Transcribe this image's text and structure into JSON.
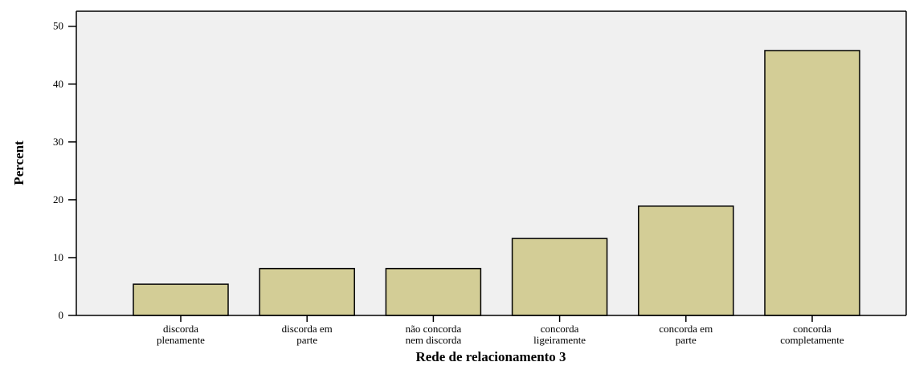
{
  "chart_data": {
    "type": "bar",
    "x_label": "Rede de relacionamento 3",
    "y_label": "Percent",
    "categories": [
      [
        "discorda",
        "plenamente"
      ],
      [
        "discorda em",
        "parte"
      ],
      [
        "não concorda",
        "nem discorda"
      ],
      [
        "concorda",
        "ligeiramente"
      ],
      [
        "concorda em",
        "parte"
      ],
      [
        "concorda",
        "completamente"
      ]
    ],
    "values": [
      5.4,
      8.1,
      8.1,
      13.3,
      18.9,
      45.8
    ],
    "color": "#d3cd96",
    "ylim": [
      0,
      52.6
    ],
    "yticks": [
      0,
      10,
      20,
      30,
      40,
      50
    ],
    "grid": false
  }
}
